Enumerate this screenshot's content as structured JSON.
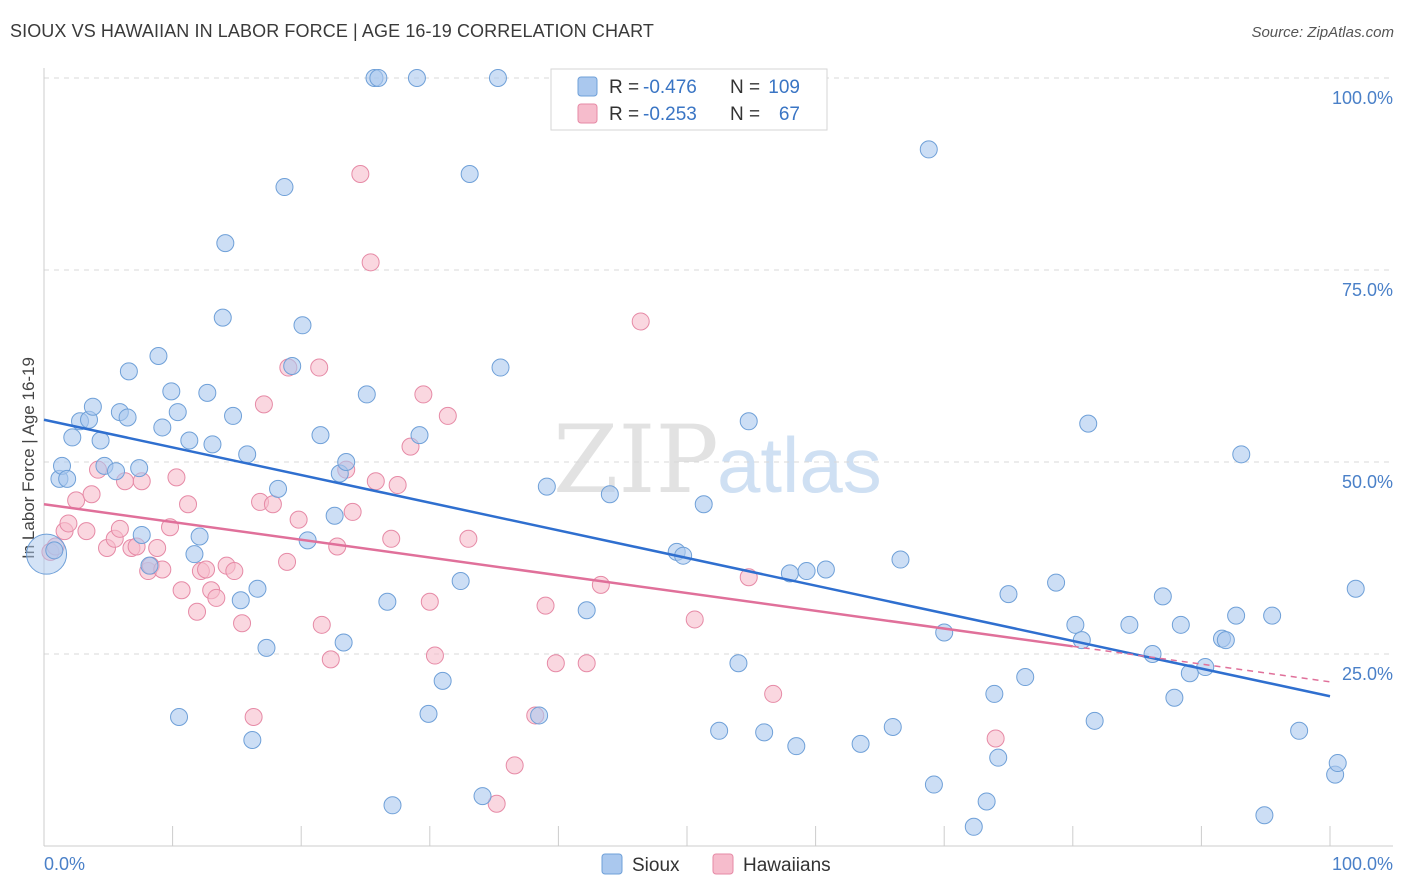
{
  "title": "SIOUX VS HAWAIIAN IN LABOR FORCE | AGE 16-19 CORRELATION CHART",
  "source": "Source: ZipAtlas.com",
  "watermark": {
    "zip": "ZIP",
    "atlas": "atlas"
  },
  "colors": {
    "sioux_fill": "#aac8ee",
    "sioux_stroke": "#6fa0d8",
    "sioux_line": "#2f6fcf",
    "haw_fill": "#f6bccc",
    "haw_stroke": "#e68aa6",
    "haw_line": "#e0709a",
    "tick_text": "#4a80c8",
    "grid": "#d8d8d8"
  },
  "legend": {
    "rows": [
      {
        "series": "Sioux",
        "r_label": "R =",
        "r_value": "-0.476",
        "n_label": "N =",
        "n_value": "109"
      },
      {
        "series": "Hawaiians",
        "r_label": "R =",
        "r_value": "-0.253",
        "n_label": "N =",
        "n_value": "67"
      }
    ]
  },
  "chart_data": {
    "type": "scatter",
    "title": "SIOUX VS HAWAIIAN IN LABOR FORCE | AGE 16-19 CORRELATION CHART",
    "xlabel": "",
    "ylabel": "In Labor Force | Age 16-19",
    "xlim": [
      0,
      100
    ],
    "ylim": [
      0,
      100
    ],
    "x_tick_labels": [
      "0.0%",
      "100.0%"
    ],
    "y_ticks": [
      25,
      50,
      75,
      100
    ],
    "y_tick_labels": [
      "25.0%",
      "50.0%",
      "75.0%",
      "100.0%"
    ],
    "legend_position": "top-center",
    "bottom_legend": [
      "Sioux",
      "Hawaiians"
    ],
    "series": [
      {
        "name": "Sioux",
        "R": -0.476,
        "N": 109,
        "trend": {
          "x": [
            0,
            100
          ],
          "y": [
            55.5,
            19.5
          ]
        },
        "points": [
          [
            0.8,
            38.5
          ],
          [
            1.2,
            47.8
          ],
          [
            1.4,
            49.5
          ],
          [
            1.8,
            47.8
          ],
          [
            2.2,
            53.2
          ],
          [
            2.8,
            55.3
          ],
          [
            3.5,
            55.5
          ],
          [
            3.8,
            57.2
          ],
          [
            4.4,
            52.8
          ],
          [
            4.7,
            49.5
          ],
          [
            5.6,
            48.8
          ],
          [
            5.9,
            56.5
          ],
          [
            6.5,
            55.8
          ],
          [
            6.6,
            61.8
          ],
          [
            7.4,
            49.2
          ],
          [
            7.6,
            40.5
          ],
          [
            8.2,
            36.5
          ],
          [
            8.9,
            63.8
          ],
          [
            9.2,
            54.5
          ],
          [
            9.9,
            59.2
          ],
          [
            10.4,
            56.5
          ],
          [
            10.5,
            16.8
          ],
          [
            11.3,
            52.8
          ],
          [
            11.7,
            38.0
          ],
          [
            12.1,
            40.3
          ],
          [
            12.7,
            59.0
          ],
          [
            13.1,
            52.3
          ],
          [
            13.9,
            68.8
          ],
          [
            14.1,
            78.5
          ],
          [
            14.7,
            56.0
          ],
          [
            15.3,
            32.0
          ],
          [
            15.8,
            51.0
          ],
          [
            16.2,
            13.8
          ],
          [
            16.6,
            33.5
          ],
          [
            17.3,
            25.8
          ],
          [
            18.2,
            46.5
          ],
          [
            18.7,
            85.8
          ],
          [
            19.3,
            62.5
          ],
          [
            20.1,
            67.8
          ],
          [
            20.5,
            39.8
          ],
          [
            21.5,
            53.5
          ],
          [
            22.6,
            43.0
          ],
          [
            23.0,
            48.5
          ],
          [
            23.3,
            26.5
          ],
          [
            23.5,
            50.0
          ],
          [
            25.1,
            58.8
          ],
          [
            25.7,
            100.0
          ],
          [
            26.0,
            100.0
          ],
          [
            26.7,
            31.8
          ],
          [
            27.1,
            5.3
          ],
          [
            29.0,
            100.0
          ],
          [
            29.2,
            53.5
          ],
          [
            29.9,
            17.2
          ],
          [
            31.0,
            21.5
          ],
          [
            32.4,
            34.5
          ],
          [
            33.1,
            87.5
          ],
          [
            34.1,
            6.5
          ],
          [
            35.3,
            100.0
          ],
          [
            35.5,
            62.3
          ],
          [
            38.5,
            17.0
          ],
          [
            39.1,
            46.8
          ],
          [
            42.2,
            30.7
          ],
          [
            44.0,
            45.8
          ],
          [
            47.9,
            100.0
          ],
          [
            49.2,
            38.3
          ],
          [
            49.7,
            37.8
          ],
          [
            51.3,
            44.5
          ],
          [
            52.5,
            15.0
          ],
          [
            54.0,
            23.8
          ],
          [
            54.8,
            55.3
          ],
          [
            56.0,
            14.8
          ],
          [
            58.0,
            35.5
          ],
          [
            58.5,
            13.0
          ],
          [
            59.3,
            35.8
          ],
          [
            60.8,
            36.0
          ],
          [
            63.5,
            13.3
          ],
          [
            66.0,
            15.5
          ],
          [
            66.6,
            37.3
          ],
          [
            68.8,
            90.7
          ],
          [
            69.2,
            8.0
          ],
          [
            70.0,
            27.8
          ],
          [
            72.3,
            2.5
          ],
          [
            73.3,
            5.8
          ],
          [
            73.9,
            19.8
          ],
          [
            74.2,
            11.5
          ],
          [
            75.0,
            32.8
          ],
          [
            76.3,
            22.0
          ],
          [
            78.7,
            34.3
          ],
          [
            80.2,
            28.8
          ],
          [
            80.7,
            26.8
          ],
          [
            81.2,
            55.0
          ],
          [
            81.7,
            16.3
          ],
          [
            84.4,
            28.8
          ],
          [
            86.2,
            25.0
          ],
          [
            87.0,
            32.5
          ],
          [
            87.9,
            19.3
          ],
          [
            88.4,
            28.8
          ],
          [
            89.1,
            22.5
          ],
          [
            90.3,
            23.3
          ],
          [
            91.6,
            27.0
          ],
          [
            91.9,
            26.8
          ],
          [
            92.7,
            30.0
          ],
          [
            93.1,
            51.0
          ],
          [
            94.9,
            4.0
          ],
          [
            95.5,
            30.0
          ],
          [
            97.6,
            15.0
          ],
          [
            100.4,
            9.3
          ],
          [
            100.6,
            10.8
          ],
          [
            102.0,
            33.5
          ]
        ]
      },
      {
        "name": "Hawaiians",
        "R": -0.253,
        "N": 67,
        "trend": {
          "x": [
            0,
            80
          ],
          "y": [
            44.5,
            26.0
          ]
        },
        "points": [
          [
            0.5,
            38.3
          ],
          [
            0.9,
            39.0
          ],
          [
            1.6,
            41.0
          ],
          [
            1.9,
            42.0
          ],
          [
            2.5,
            45.0
          ],
          [
            3.3,
            41.0
          ],
          [
            3.7,
            45.8
          ],
          [
            4.2,
            49.0
          ],
          [
            4.9,
            38.8
          ],
          [
            5.5,
            40.0
          ],
          [
            5.9,
            41.3
          ],
          [
            6.3,
            47.5
          ],
          [
            6.8,
            38.8
          ],
          [
            7.2,
            39.0
          ],
          [
            7.6,
            47.5
          ],
          [
            8.1,
            35.8
          ],
          [
            8.3,
            36.5
          ],
          [
            8.8,
            38.8
          ],
          [
            9.2,
            36.0
          ],
          [
            9.8,
            41.5
          ],
          [
            10.3,
            48.0
          ],
          [
            10.7,
            33.3
          ],
          [
            11.2,
            44.5
          ],
          [
            11.9,
            30.5
          ],
          [
            12.2,
            35.8
          ],
          [
            12.6,
            36.0
          ],
          [
            13.0,
            33.3
          ],
          [
            13.4,
            32.3
          ],
          [
            14.2,
            36.5
          ],
          [
            14.8,
            35.8
          ],
          [
            15.4,
            29.0
          ],
          [
            16.3,
            16.8
          ],
          [
            16.8,
            44.8
          ],
          [
            17.1,
            57.5
          ],
          [
            17.8,
            44.5
          ],
          [
            18.9,
            37.0
          ],
          [
            19.0,
            62.3
          ],
          [
            19.8,
            42.5
          ],
          [
            21.4,
            62.3
          ],
          [
            21.6,
            28.8
          ],
          [
            22.3,
            24.3
          ],
          [
            22.8,
            39.0
          ],
          [
            23.5,
            49.0
          ],
          [
            24.0,
            43.5
          ],
          [
            24.6,
            87.5
          ],
          [
            25.4,
            76.0
          ],
          [
            25.8,
            47.5
          ],
          [
            27.0,
            40.0
          ],
          [
            27.5,
            47.0
          ],
          [
            28.5,
            52.0
          ],
          [
            29.5,
            58.8
          ],
          [
            30.0,
            31.8
          ],
          [
            30.4,
            24.8
          ],
          [
            31.4,
            56.0
          ],
          [
            33.0,
            40.0
          ],
          [
            35.2,
            5.5
          ],
          [
            36.6,
            10.5
          ],
          [
            38.2,
            17.0
          ],
          [
            39.0,
            31.3
          ],
          [
            39.8,
            23.8
          ],
          [
            42.2,
            23.8
          ],
          [
            43.3,
            34.0
          ],
          [
            46.4,
            68.3
          ],
          [
            50.6,
            29.5
          ],
          [
            54.8,
            35.0
          ],
          [
            56.7,
            19.8
          ],
          [
            74.0,
            14.0
          ]
        ]
      }
    ]
  },
  "x_label_left": "0.0%",
  "x_label_right": "100.0%"
}
